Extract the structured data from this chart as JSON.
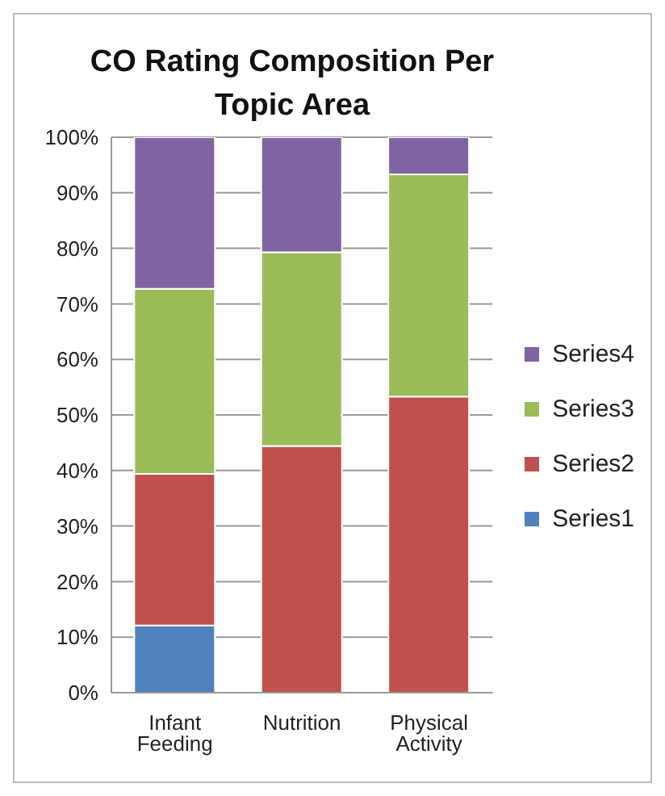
{
  "chart_data": {
    "type": "bar",
    "title": "CO Rating Composition Per Topic Area",
    "categories": [
      "Infant Feeding",
      "Nutrition",
      "Physical Activity"
    ],
    "stacked": true,
    "series": [
      {
        "name": "Series1",
        "color": "#4f81bd",
        "values": [
          12.1,
          0,
          0
        ]
      },
      {
        "name": "Series2",
        "color": "#c0504d",
        "values": [
          27.3,
          44.4,
          53.3
        ]
      },
      {
        "name": "Series3",
        "color": "#9bbb59",
        "values": [
          33.3,
          34.9,
          40
        ]
      },
      {
        "name": "Series4",
        "color": "#8064a2",
        "values": [
          27.3,
          20.7,
          6.7
        ]
      }
    ],
    "ylim": [
      0,
      100
    ],
    "yticks": [
      {
        "value": 0,
        "label": "0%"
      },
      {
        "value": 10,
        "label": "10%"
      },
      {
        "value": 20,
        "label": "20%"
      },
      {
        "value": 30,
        "label": "30%"
      },
      {
        "value": 40,
        "label": "40%"
      },
      {
        "value": 50,
        "label": "50%"
      },
      {
        "value": 60,
        "label": "60%"
      },
      {
        "value": 70,
        "label": "70%"
      },
      {
        "value": 80,
        "label": "80%"
      },
      {
        "value": 90,
        "label": "90%"
      },
      {
        "value": 100,
        "label": "100%"
      }
    ],
    "grid": "y",
    "legend": "right"
  }
}
